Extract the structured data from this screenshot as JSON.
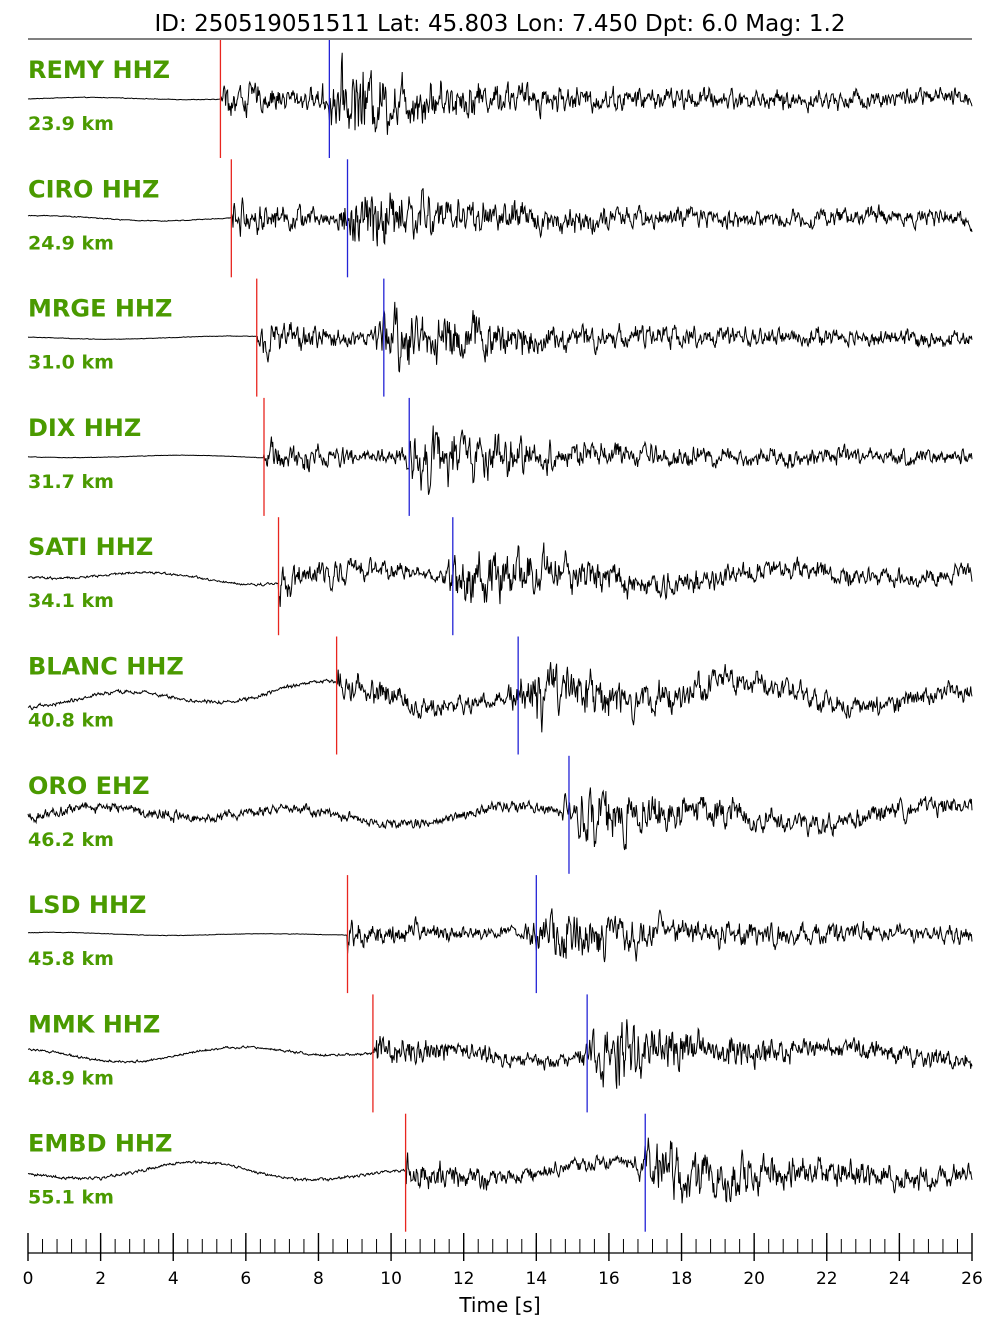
{
  "chart_data": {
    "type": "line",
    "title": "ID: 250519051511 Lat:  45.803 Lon:   7.450 Dpt:     6.0 Mag:   1.2",
    "xlabel": "Time [s]",
    "xlim": [
      0,
      26
    ],
    "xticks": [
      0,
      2,
      4,
      6,
      8,
      10,
      12,
      14,
      16,
      18,
      20,
      22,
      24,
      26
    ],
    "xtick_labels": [
      "0",
      "2",
      "4",
      "6",
      "8",
      "10",
      "12",
      "14",
      "16",
      "18",
      "20",
      "22",
      "24",
      "26"
    ],
    "minor_tick_step": 0.4,
    "grid": false,
    "colors": {
      "trace": "#000000",
      "p_pick": "#e8251f",
      "s_pick": "#2323d6",
      "label": "#4a9a00"
    },
    "traces": [
      {
        "station": "REMY HHZ",
        "distance": "23.9 km",
        "p_arrival": 5.3,
        "s_arrival": 8.3,
        "amp": 1.0,
        "noise": 0.03
      },
      {
        "station": "CIRO HHZ",
        "distance": "24.9 km",
        "p_arrival": 5.6,
        "s_arrival": 8.8,
        "amp": 0.9,
        "noise": 0.05
      },
      {
        "station": "MRGE HHZ",
        "distance": "31.0 km",
        "p_arrival": 6.3,
        "s_arrival": 9.8,
        "amp": 0.9,
        "noise": 0.03
      },
      {
        "station": "DIX HHZ",
        "distance": "31.7 km",
        "p_arrival": 6.5,
        "s_arrival": 10.5,
        "amp": 0.85,
        "noise": 0.03
      },
      {
        "station": "SATI HHZ",
        "distance": "34.1 km",
        "p_arrival": 6.9,
        "s_arrival": 11.7,
        "amp": 0.85,
        "noise": 0.15
      },
      {
        "station": "BLANC HHZ",
        "distance": "40.8 km",
        "p_arrival": 8.5,
        "s_arrival": 13.5,
        "amp": 0.8,
        "noise": 0.25
      },
      {
        "station": "ORO EHZ",
        "distance": "46.2 km",
        "p_arrival": null,
        "s_arrival": 14.9,
        "amp": 0.8,
        "noise": 0.18
      },
      {
        "station": "LSD HHZ",
        "distance": "45.8 km",
        "p_arrival": 8.8,
        "s_arrival": 14.0,
        "amp": 0.85,
        "noise": 0.03
      },
      {
        "station": "MMK HHZ",
        "distance": "48.9 km",
        "p_arrival": 9.5,
        "s_arrival": 15.4,
        "amp": 0.85,
        "noise": 0.15
      },
      {
        "station": "EMBD HHZ",
        "distance": "55.1 km",
        "p_arrival": 10.4,
        "s_arrival": 17.0,
        "amp": 0.85,
        "noise": 0.18
      }
    ]
  }
}
